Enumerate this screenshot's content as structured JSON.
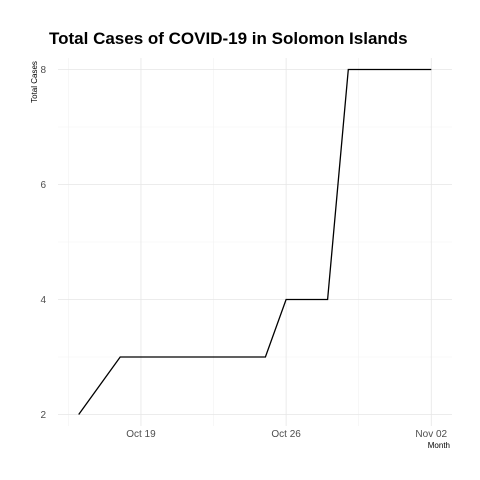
{
  "chart_data": {
    "type": "line",
    "title": "Total Cases of COVID-19 in Solomon Islands",
    "xlabel": "Month",
    "ylabel": "Total Cases",
    "x": [
      "2020-10-16",
      "2020-10-18",
      "2020-10-25",
      "2020-10-26",
      "2020-10-28",
      "2020-10-29",
      "2020-11-02"
    ],
    "series": [
      {
        "values": [
          2,
          3,
          3,
          4,
          4,
          8,
          8
        ]
      }
    ],
    "x_ticks": [
      {
        "date": "2020-10-19",
        "label": "Oct 19"
      },
      {
        "date": "2020-10-26",
        "label": "Oct 26"
      },
      {
        "date": "2020-11-02",
        "label": "Nov 02"
      }
    ],
    "y_ticks": [
      2,
      4,
      6,
      8
    ],
    "xlim": [
      "2020-10-15",
      "2020-11-03"
    ],
    "ylim": [
      1.8,
      8.2
    ],
    "grid": true,
    "line_color": "#000000"
  }
}
